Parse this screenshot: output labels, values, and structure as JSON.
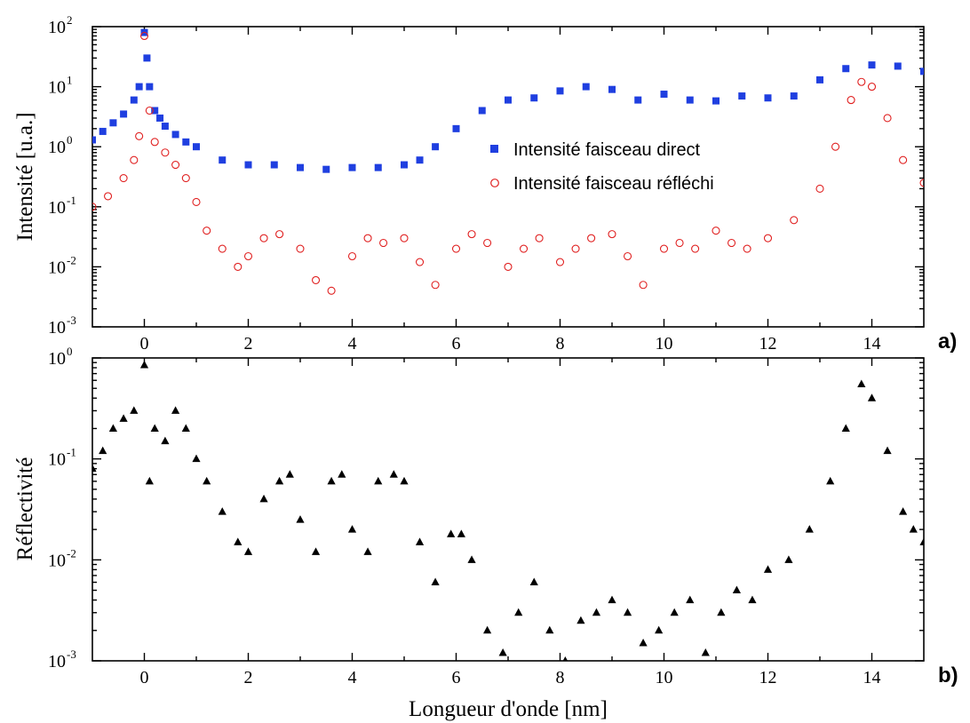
{
  "colors": {
    "direct": "#1f3fe0",
    "reflected": "#e02020",
    "reflectivity": "#000000"
  },
  "chart_data": [
    {
      "type": "scatter",
      "panel_label": "a)",
      "ylabel": "Intensité [u.a.]",
      "xlabel": "",
      "xlim": [
        -1,
        15
      ],
      "ylim": [
        0.001,
        100
      ],
      "yscale": "log",
      "x_ticks": [
        "0",
        "2",
        "4",
        "6",
        "8",
        "10",
        "12",
        "14"
      ],
      "y_ticks": [
        {
          "base": "10",
          "exp": "-3"
        },
        {
          "base": "10",
          "exp": "-2"
        },
        {
          "base": "10",
          "exp": "-1"
        },
        {
          "base": "10",
          "exp": "0"
        },
        {
          "base": "10",
          "exp": "1"
        },
        {
          "base": "10",
          "exp": "2"
        }
      ],
      "legend_position": "center-right",
      "series": [
        {
          "name": "Intensité faisceau direct",
          "marker": "filled-square",
          "x": [
            -1.0,
            -0.8,
            -0.6,
            -0.4,
            -0.2,
            -0.1,
            0.0,
            0.05,
            0.1,
            0.2,
            0.3,
            0.4,
            0.6,
            0.8,
            1.0,
            1.5,
            2.0,
            2.5,
            3.0,
            3.5,
            4.0,
            4.5,
            5.0,
            5.3,
            5.6,
            6.0,
            6.5,
            7.0,
            7.5,
            8.0,
            8.5,
            9.0,
            9.5,
            10.0,
            10.5,
            11.0,
            11.5,
            12.0,
            12.5,
            13.0,
            13.5,
            14.0,
            14.5,
            15.0
          ],
          "y": [
            1.3,
            1.8,
            2.5,
            3.5,
            6.0,
            10.0,
            80.0,
            30.0,
            10.0,
            4.0,
            3.0,
            2.2,
            1.6,
            1.2,
            1.0,
            0.6,
            0.5,
            0.5,
            0.45,
            0.42,
            0.45,
            0.45,
            0.5,
            0.6,
            1.0,
            2.0,
            4.0,
            6.0,
            6.5,
            8.5,
            10.0,
            9.0,
            6.0,
            7.5,
            6.0,
            5.8,
            7.0,
            6.5,
            7.0,
            13.0,
            20.0,
            23.0,
            22.0,
            18.0
          ]
        },
        {
          "name": "Intensité faisceau réfléchi",
          "marker": "open-circle",
          "x": [
            -1.0,
            -0.7,
            -0.4,
            -0.2,
            -0.1,
            0.0,
            0.1,
            0.2,
            0.4,
            0.6,
            0.8,
            1.0,
            1.2,
            1.5,
            1.8,
            2.0,
            2.3,
            2.6,
            3.0,
            3.3,
            3.6,
            4.0,
            4.3,
            4.6,
            5.0,
            5.3,
            5.6,
            6.0,
            6.3,
            6.6,
            7.0,
            7.3,
            7.6,
            8.0,
            8.3,
            8.6,
            9.0,
            9.3,
            9.6,
            10.0,
            10.3,
            10.6,
            11.0,
            11.3,
            11.6,
            12.0,
            12.5,
            13.0,
            13.3,
            13.6,
            13.8,
            14.0,
            14.3,
            14.6,
            15.0
          ],
          "y": [
            0.1,
            0.15,
            0.3,
            0.6,
            1.5,
            70.0,
            4.0,
            1.2,
            0.8,
            0.5,
            0.3,
            0.12,
            0.04,
            0.02,
            0.01,
            0.015,
            0.03,
            0.035,
            0.02,
            0.006,
            0.004,
            0.015,
            0.03,
            0.025,
            0.03,
            0.012,
            0.005,
            0.02,
            0.035,
            0.025,
            0.01,
            0.02,
            0.03,
            0.012,
            0.02,
            0.03,
            0.035,
            0.015,
            0.005,
            0.02,
            0.025,
            0.02,
            0.04,
            0.025,
            0.02,
            0.03,
            0.06,
            0.2,
            1.0,
            6.0,
            12.0,
            10.0,
            3.0,
            0.6,
            0.25
          ]
        }
      ]
    },
    {
      "type": "scatter",
      "panel_label": "b)",
      "ylabel": "Réflectivité",
      "xlabel": "Longueur d'onde [nm]",
      "xlim": [
        -1,
        15
      ],
      "ylim": [
        0.001,
        1
      ],
      "yscale": "log",
      "x_ticks": [
        "0",
        "2",
        "4",
        "6",
        "8",
        "10",
        "12",
        "14"
      ],
      "y_ticks": [
        {
          "base": "10",
          "exp": "-3"
        },
        {
          "base": "10",
          "exp": "-2"
        },
        {
          "base": "10",
          "exp": "-1"
        },
        {
          "base": "10",
          "exp": "0"
        }
      ],
      "series": [
        {
          "name": "",
          "marker": "filled-triangle",
          "x": [
            -1.0,
            -0.8,
            -0.6,
            -0.4,
            -0.2,
            0.0,
            0.1,
            0.2,
            0.4,
            0.6,
            0.8,
            1.0,
            1.2,
            1.5,
            1.8,
            2.0,
            2.3,
            2.6,
            2.8,
            3.0,
            3.3,
            3.6,
            3.8,
            4.0,
            4.3,
            4.5,
            4.8,
            5.0,
            5.3,
            5.6,
            5.9,
            6.1,
            6.3,
            6.6,
            6.9,
            7.2,
            7.5,
            7.8,
            8.1,
            8.4,
            8.7,
            9.0,
            9.3,
            9.6,
            9.9,
            10.2,
            10.5,
            10.8,
            11.1,
            11.4,
            11.7,
            12.0,
            12.4,
            12.8,
            13.2,
            13.5,
            13.8,
            14.0,
            14.3,
            14.6,
            14.8,
            15.0
          ],
          "y": [
            0.08,
            0.12,
            0.2,
            0.25,
            0.3,
            0.85,
            0.06,
            0.2,
            0.15,
            0.3,
            0.2,
            0.1,
            0.06,
            0.03,
            0.015,
            0.012,
            0.04,
            0.06,
            0.07,
            0.025,
            0.012,
            0.06,
            0.07,
            0.02,
            0.012,
            0.06,
            0.07,
            0.06,
            0.015,
            0.006,
            0.018,
            0.018,
            0.01,
            0.002,
            0.0012,
            0.003,
            0.006,
            0.002,
            0.001,
            0.0025,
            0.003,
            0.004,
            0.003,
            0.0015,
            0.002,
            0.003,
            0.004,
            0.0012,
            0.003,
            0.005,
            0.004,
            0.008,
            0.01,
            0.02,
            0.06,
            0.2,
            0.55,
            0.4,
            0.12,
            0.03,
            0.02,
            0.015
          ]
        }
      ]
    }
  ]
}
